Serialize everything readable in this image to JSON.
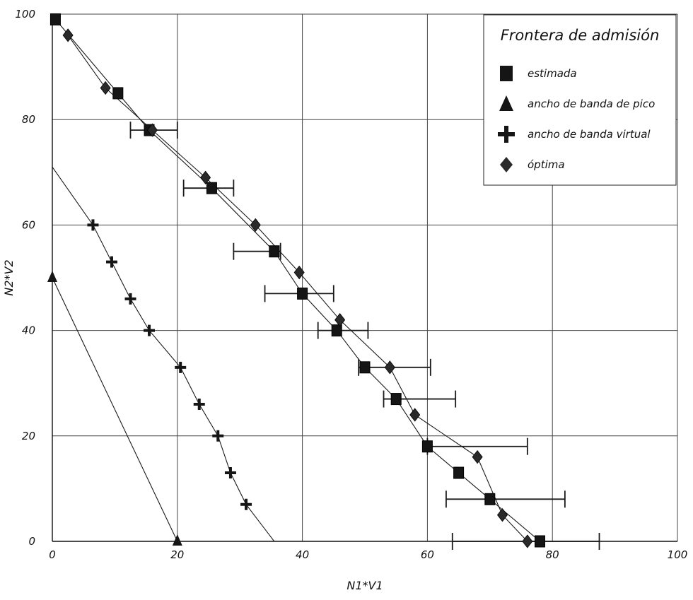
{
  "chart_data": {
    "type": "line",
    "xlabel": "N1*V1",
    "ylabel": "N2*V2",
    "xlim": [
      0,
      100
    ],
    "ylim": [
      0,
      100
    ],
    "x_ticks": [
      "0",
      "20",
      "40",
      "60",
      "80",
      "100"
    ],
    "y_ticks": [
      "0",
      "20",
      "40",
      "60",
      "80",
      "100"
    ],
    "grid": true,
    "legend_position": "top-right",
    "legend_title": "Frontera de admisión",
    "series": [
      {
        "name": "estimada",
        "marker": "square",
        "color": "#111111",
        "points": [
          {
            "x": 0.5,
            "y": 99,
            "xerr": null
          },
          {
            "x": 10.5,
            "y": 85,
            "xerr": null
          },
          {
            "x": 15.5,
            "y": 78,
            "xerr": [
              12.5,
              20
            ]
          },
          {
            "x": 25.5,
            "y": 67,
            "xerr": [
              21,
              29
            ]
          },
          {
            "x": 35.5,
            "y": 55,
            "xerr": [
              29,
              36.5
            ]
          },
          {
            "x": 40,
            "y": 47,
            "xerr": [
              34,
              45
            ]
          },
          {
            "x": 45.5,
            "y": 40,
            "xerr": [
              42.5,
              50.5
            ]
          },
          {
            "x": 50,
            "y": 33,
            "xerr": [
              49,
              60.5
            ]
          },
          {
            "x": 55,
            "y": 27,
            "xerr": [
              53,
              64.5
            ]
          },
          {
            "x": 60,
            "y": 18,
            "xerr": [
              60,
              76
            ]
          },
          {
            "x": 65,
            "y": 13,
            "xerr": null
          },
          {
            "x": 70,
            "y": 8,
            "xerr": [
              63,
              82
            ]
          },
          {
            "x": 78,
            "y": 0,
            "xerr": [
              64,
              87.5
            ]
          }
        ]
      },
      {
        "name": "ancho de banda de pico",
        "marker": "triangle",
        "color": "#111111",
        "points": [
          {
            "x": 0,
            "y": 50
          },
          {
            "x": 20,
            "y": 0
          }
        ]
      },
      {
        "name": "ancho de banda virtual",
        "marker": "cross",
        "color": "#111111",
        "line_start": {
          "x": 0,
          "y": 71
        },
        "line_end": {
          "x": 35.5,
          "y": 0
        },
        "points": [
          {
            "x": 6.5,
            "y": 60
          },
          {
            "x": 9.5,
            "y": 53
          },
          {
            "x": 12.5,
            "y": 46
          },
          {
            "x": 15.5,
            "y": 40
          },
          {
            "x": 20.5,
            "y": 33
          },
          {
            "x": 23.5,
            "y": 26
          },
          {
            "x": 26.5,
            "y": 20
          },
          {
            "x": 28.5,
            "y": 13
          },
          {
            "x": 31,
            "y": 7
          }
        ]
      },
      {
        "name": "óptima",
        "marker": "diamond",
        "color": "#111111",
        "points": [
          {
            "x": 2.5,
            "y": 96
          },
          {
            "x": 8.5,
            "y": 86
          },
          {
            "x": 16,
            "y": 78
          },
          {
            "x": 24.5,
            "y": 69
          },
          {
            "x": 32.5,
            "y": 60
          },
          {
            "x": 39.5,
            "y": 51
          },
          {
            "x": 46,
            "y": 42
          },
          {
            "x": 54,
            "y": 33
          },
          {
            "x": 58,
            "y": 24
          },
          {
            "x": 68,
            "y": 16
          },
          {
            "x": 72,
            "y": 5
          },
          {
            "x": 76,
            "y": 0
          }
        ]
      }
    ]
  }
}
